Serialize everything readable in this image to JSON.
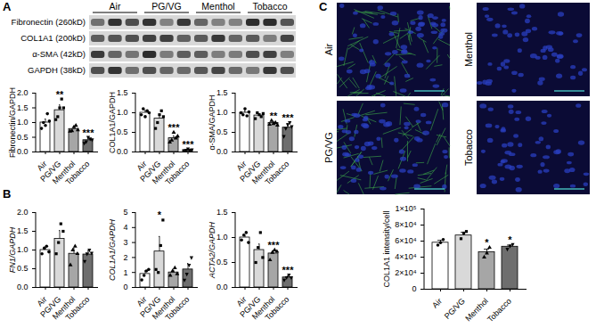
{
  "panel_labels": [
    "A",
    "B",
    "C"
  ],
  "blot": {
    "groups": [
      "Air",
      "PG/VG",
      "Menthol",
      "Tobacco"
    ],
    "rows": [
      "Fibronectin (260kD)",
      "COL1A1 (200kD)",
      "α-SMA (42kD)",
      "GAPDH (38kD)"
    ]
  },
  "images": {
    "labels": [
      "Air",
      "Menthol",
      "PG/VG",
      "Tobacco"
    ]
  },
  "chart_data": [
    {
      "type": "bar",
      "y_label": "Fibronectin/GAPDH",
      "categories": [
        "Air",
        "PG/VG",
        "Menthol",
        "Tobacco"
      ],
      "values": [
        1.0,
        1.42,
        0.78,
        0.4
      ],
      "errors": [
        0.12,
        0.18,
        0.07,
        0.06
      ],
      "points": [
        [
          0.8,
          1.0,
          0.9,
          1.3,
          1.05
        ],
        [
          1.1,
          1.2,
          1.5,
          1.8,
          1.5
        ],
        [
          0.7,
          0.72,
          0.85,
          0.9,
          0.75
        ],
        [
          0.3,
          0.35,
          0.5,
          0.45,
          0.42
        ]
      ],
      "annotations": [
        null,
        "**",
        null,
        "***"
      ],
      "colors": [
        "#ffffff",
        "#d9d9d9",
        "#a6a6a6",
        "#6e6e6e"
      ],
      "markers": [
        "circle",
        "square",
        "triangle",
        "triangle-down"
      ],
      "ylim": [
        0,
        2
      ],
      "yticks": [
        {
          "value": 0,
          "label": "0.0"
        },
        {
          "value": 0.5,
          "label": "0.5"
        },
        {
          "value": 1,
          "label": "1.0"
        },
        {
          "value": 1.5,
          "label": "1.5"
        },
        {
          "value": 2,
          "label": "2.0"
        }
      ]
    },
    {
      "type": "bar",
      "y_label": "COL1A1/GAPDH",
      "categories": [
        "Air",
        "PG/VG",
        "Menthol",
        "Tobacco"
      ],
      "values": [
        1.0,
        0.85,
        0.35,
        0.05
      ],
      "errors": [
        0.06,
        0.1,
        0.06,
        0.02
      ],
      "points": [
        [
          0.95,
          1.1,
          0.9,
          1.05,
          1.0
        ],
        [
          0.6,
          0.75,
          0.95,
          1.05,
          0.9
        ],
        [
          0.25,
          0.3,
          0.5,
          0.35,
          0.4
        ],
        [
          0.02,
          0.05,
          0.08,
          0.04,
          0.06
        ]
      ],
      "annotations": [
        null,
        null,
        "***",
        "***"
      ],
      "colors": [
        "#ffffff",
        "#d9d9d9",
        "#a6a6a6",
        "#6e6e6e"
      ],
      "markers": [
        "circle",
        "square",
        "triangle",
        "triangle-down"
      ],
      "ylim": [
        0,
        1.5
      ],
      "yticks": [
        {
          "value": 0,
          "label": "0.0"
        },
        {
          "value": 0.5,
          "label": "0.5"
        },
        {
          "value": 1,
          "label": "1.0"
        },
        {
          "value": 1.5,
          "label": "1.5"
        }
      ]
    },
    {
      "type": "bar",
      "y_label": "α-SMA/GAPDH",
      "categories": [
        "Air",
        "PG/VG",
        "Menthol",
        "Tobacco"
      ],
      "values": [
        1.0,
        0.93,
        0.74,
        0.62
      ],
      "errors": [
        0.04,
        0.05,
        0.04,
        0.1
      ],
      "points": [
        [
          1.0,
          0.95,
          1.1,
          0.92,
          1.02
        ],
        [
          0.85,
          1.0,
          0.95,
          0.9,
          0.98
        ],
        [
          0.7,
          0.8,
          0.72,
          0.75,
          0.68
        ],
        [
          0.4,
          0.6,
          0.7,
          0.75,
          0.65
        ]
      ],
      "annotations": [
        null,
        null,
        "**",
        "***"
      ],
      "colors": [
        "#ffffff",
        "#d9d9d9",
        "#a6a6a6",
        "#6e6e6e"
      ],
      "markers": [
        "circle",
        "square",
        "triangle",
        "triangle-down"
      ],
      "ylim": [
        0,
        1.5
      ],
      "yticks": [
        {
          "value": 0,
          "label": "0.0"
        },
        {
          "value": 0.5,
          "label": "0.5"
        },
        {
          "value": 1,
          "label": "1.0"
        },
        {
          "value": 1.5,
          "label": "1.5"
        }
      ]
    },
    {
      "type": "bar",
      "y_label": "FN1/GAPDH",
      "categories": [
        "Air",
        "PG/VG",
        "Menthol",
        "Tobacco"
      ],
      "values": [
        1.0,
        1.3,
        0.9,
        0.88
      ],
      "errors": [
        0.07,
        0.22,
        0.15,
        0.1
      ],
      "points": [
        [
          0.9,
          1.05,
          1.1,
          0.95
        ],
        [
          0.9,
          1.2,
          1.7,
          1.5
        ],
        [
          0.6,
          1.0,
          1.1,
          0.9
        ],
        [
          0.7,
          0.9,
          1.0,
          0.92
        ]
      ],
      "annotations": [
        null,
        null,
        null,
        null
      ],
      "colors": [
        "#ffffff",
        "#d9d9d9",
        "#a6a6a6",
        "#6e6e6e"
      ],
      "markers": [
        "circle",
        "square",
        "triangle",
        "triangle-down"
      ],
      "ylim": [
        0,
        2
      ],
      "yticks": [
        {
          "value": 0,
          "label": "0.0"
        },
        {
          "value": 0.5,
          "label": "0.5"
        },
        {
          "value": 1,
          "label": "1.0"
        },
        {
          "value": 1.5,
          "label": "1.5"
        },
        {
          "value": 2,
          "label": "2.0"
        }
      ]
    },
    {
      "type": "bar",
      "y_label": "COL1A1/GAPDH",
      "categories": [
        "Air",
        "PG/VG",
        "Menthol",
        "Tobacco"
      ],
      "values": [
        0.9,
        2.4,
        1.0,
        1.2
      ],
      "errors": [
        0.2,
        1.0,
        0.15,
        0.4
      ],
      "points": [
        [
          0.5,
          0.8,
          1.1,
          1.2
        ],
        [
          1.2,
          1.0,
          2.8,
          4.5
        ],
        [
          0.8,
          1.1,
          1.3,
          0.9
        ],
        [
          0.5,
          0.9,
          1.5,
          2.0
        ]
      ],
      "annotations": [
        null,
        "*",
        null,
        null
      ],
      "colors": [
        "#ffffff",
        "#d9d9d9",
        "#a6a6a6",
        "#6e6e6e"
      ],
      "markers": [
        "circle",
        "square",
        "triangle",
        "triangle-down"
      ],
      "ylim": [
        0,
        5
      ],
      "yticks": [
        0,
        1,
        2,
        3,
        4,
        5
      ]
    },
    {
      "type": "bar",
      "y_label": "ACTA2/GAPDH",
      "categories": [
        "Air",
        "PG/VG",
        "Menthol",
        "Tobacco"
      ],
      "values": [
        1.0,
        0.75,
        0.68,
        0.2
      ],
      "errors": [
        0.04,
        0.12,
        0.06,
        0.03
      ],
      "points": [
        [
          0.95,
          1.05,
          1.1,
          0.9
        ],
        [
          0.5,
          0.8,
          1.1,
          0.6
        ],
        [
          0.55,
          0.7,
          0.75,
          0.72
        ],
        [
          0.15,
          0.2,
          0.25,
          0.2
        ]
      ],
      "annotations": [
        null,
        null,
        "***",
        "***"
      ],
      "colors": [
        "#ffffff",
        "#d9d9d9",
        "#a6a6a6",
        "#6e6e6e"
      ],
      "markers": [
        "circle",
        "square",
        "triangle",
        "triangle-down"
      ],
      "ylim": [
        0,
        1.5
      ],
      "yticks": [
        {
          "value": 0,
          "label": "0.0"
        },
        {
          "value": 0.5,
          "label": "0.5"
        },
        {
          "value": 1,
          "label": "1.0"
        },
        {
          "value": 1.5,
          "label": "1.5"
        }
      ]
    },
    {
      "type": "bar",
      "y_label": "COL1A1 intensity/cell",
      "categories": [
        "Air",
        "PG/VG",
        "Menthol",
        "Tobacco"
      ],
      "values": [
        58000,
        67000,
        46000,
        53000
      ],
      "errors": [
        3000,
        4000,
        4000,
        2000
      ],
      "points": [
        [
          55000,
          58000,
          62000
        ],
        [
          63000,
          70000,
          72000
        ],
        [
          40000,
          45000,
          52000
        ],
        [
          50000,
          54000,
          56000
        ]
      ],
      "annotations": [
        null,
        null,
        "*",
        "*"
      ],
      "colors": [
        "#ffffff",
        "#d9d9d9",
        "#a6a6a6",
        "#6e6e6e"
      ],
      "markers": [
        "circle",
        "square",
        "triangle",
        "triangle-down"
      ],
      "ylim": [
        0,
        100000
      ],
      "yticks": [
        0,
        {
          "value": 20000,
          "label": "2×10⁴"
        },
        {
          "value": 40000,
          "label": "4×10⁴"
        },
        {
          "value": 60000,
          "label": "6×10⁴"
        },
        {
          "value": 80000,
          "label": "8×10⁴"
        },
        {
          "value": 100000,
          "label": "1×10⁵"
        }
      ]
    }
  ]
}
